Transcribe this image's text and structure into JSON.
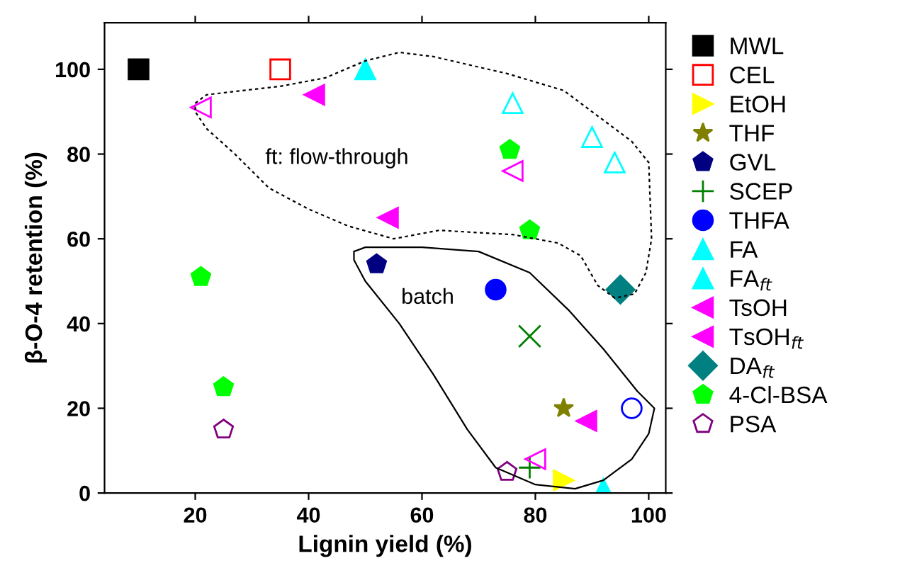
{
  "chart_data": {
    "type": "scatter",
    "xlabel": "Lignin yield (%)",
    "ylabel": "β-O-4 retention (%)",
    "xlim": [
      4,
      103
    ],
    "ylim": [
      0,
      111
    ],
    "xticks": [
      20,
      40,
      60,
      80,
      100
    ],
    "yticks": [
      0,
      20,
      40,
      60,
      80,
      100
    ],
    "grid": false,
    "legend": "right",
    "annotations": [
      "ft: flow-through",
      "batch"
    ],
    "series": [
      {
        "name": "MWL",
        "color": "#000000",
        "x": [
          10
        ],
        "values": [
          100
        ]
      },
      {
        "name": "CEL",
        "color": "#ff0000",
        "x": [
          35
        ],
        "values": [
          100
        ]
      },
      {
        "name": "EtOH",
        "color": "#ffff00",
        "x": [
          85
        ],
        "values": [
          3
        ]
      },
      {
        "name": "THF",
        "color": "#808000",
        "x": [
          85
        ],
        "values": [
          20
        ]
      },
      {
        "name": "GVL",
        "color": "#000080",
        "x": [
          52
        ],
        "values": [
          54
        ]
      },
      {
        "name": "SCEP",
        "color": "#008000",
        "x": [
          79,
          79
        ],
        "values": [
          6,
          37
        ]
      },
      {
        "name": "THFA",
        "color": "#0000ff",
        "x": [
          73,
          97
        ],
        "values": [
          48,
          20
        ]
      },
      {
        "name": "FA",
        "color": "#00ffff",
        "x": [
          92
        ],
        "values": [
          1
        ]
      },
      {
        "name": "FA$_{ft}$",
        "color": "#00ffff",
        "x": [
          50,
          76,
          90,
          94
        ],
        "values": [
          100,
          92,
          84,
          78
        ]
      },
      {
        "name": "TsOH",
        "color": "#ff00ff",
        "x": [
          89,
          80
        ],
        "values": [
          17,
          8
        ]
      },
      {
        "name": "TsOH$_{ft}$",
        "color": "#ff00ff",
        "x": [
          41,
          21,
          54,
          76
        ],
        "values": [
          94,
          91,
          65,
          76
        ]
      },
      {
        "name": "DA$_{ft}$",
        "color": "#008080",
        "x": [
          95
        ],
        "values": [
          48
        ]
      },
      {
        "name": "4-Cl-BSA",
        "color": "#00ff00",
        "x": [
          75.5,
          25,
          21,
          79
        ],
        "values": [
          81,
          25,
          51,
          62
        ]
      },
      {
        "name": "PSA",
        "color": "#800080",
        "x": [
          25,
          75
        ],
        "values": [
          15,
          5
        ]
      }
    ]
  }
}
